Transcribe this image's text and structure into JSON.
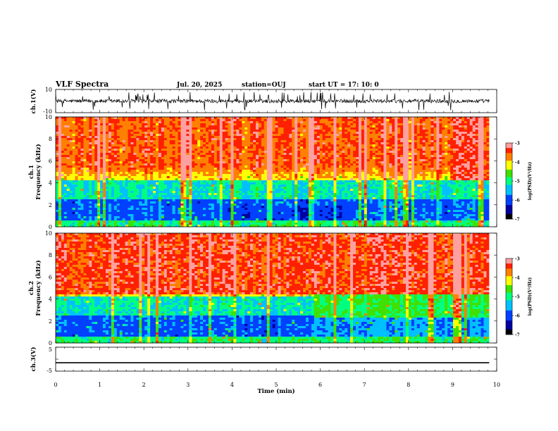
{
  "header": {
    "title": "VLF Spectra",
    "date": "Jul. 20, 2025",
    "station": "station=OUJ",
    "start": "start UT =  17: 10: 0"
  },
  "chart_data": [
    {
      "type": "line",
      "panel": "ch1-waveform",
      "ylabel": "ch.1(V)",
      "ylim": [
        -10,
        10
      ],
      "yticks": [
        "10",
        "-10"
      ],
      "xlim": [
        0,
        10
      ],
      "data_end_min": 9.83,
      "baseline": 0.0,
      "series": [
        {
          "values_summary": "noisy signal centered near 0 V, typical swing about ±2 V, spikes to about ±8 V"
        }
      ]
    },
    {
      "type": "heatmap",
      "panel": "ch1-spectrogram",
      "ylabel": "ch.1\nFrequency (kHz)",
      "ylim": [
        0,
        10
      ],
      "yticks": [
        "0",
        "2",
        "4",
        "6",
        "8",
        "10"
      ],
      "xlim": [
        0,
        10
      ],
      "colorbar": {
        "label": "log(PSD)(V²/Hz)",
        "range": [
          -7,
          -3
        ],
        "ticks": [
          "-3",
          "-4",
          "-5",
          "-6",
          "-7"
        ]
      }
    },
    {
      "type": "heatmap",
      "panel": "ch2-spectrogram",
      "ylabel": "ch.2\nFrequency (kHz)",
      "ylim": [
        0,
        10
      ],
      "yticks": [
        "0",
        "2",
        "4",
        "6",
        "8",
        "10"
      ],
      "xlim": [
        0,
        10
      ],
      "colorbar": {
        "label": "log(PSD)(V²/Hz)",
        "range": [
          -7,
          -3
        ],
        "ticks": [
          "-3",
          "-4",
          "-5",
          "-6",
          "-7"
        ]
      }
    },
    {
      "type": "line",
      "panel": "ch3-waveform",
      "ylabel": "ch.3(V)",
      "ylim": [
        -5,
        5
      ],
      "yticks": [
        "5",
        "0",
        "-5"
      ],
      "xlim": [
        0,
        10
      ],
      "data_end_min": 9.83,
      "series": [
        {
          "values_summary": "flat line at about -1.5 V"
        }
      ],
      "constant_value": -1.5
    }
  ],
  "xaxis": {
    "label": "Time (min)",
    "ticks": [
      "0",
      "1",
      "2",
      "3",
      "4",
      "5",
      "6",
      "7",
      "8",
      "9",
      "10"
    ]
  },
  "colors": {
    "cmap": [
      "#000000",
      "#0000a0",
      "#0040ff",
      "#00c0ff",
      "#00ff80",
      "#40e000",
      "#ffff00",
      "#ff8000",
      "#ff2000",
      "#ffc0c0",
      "#ffffff"
    ]
  }
}
